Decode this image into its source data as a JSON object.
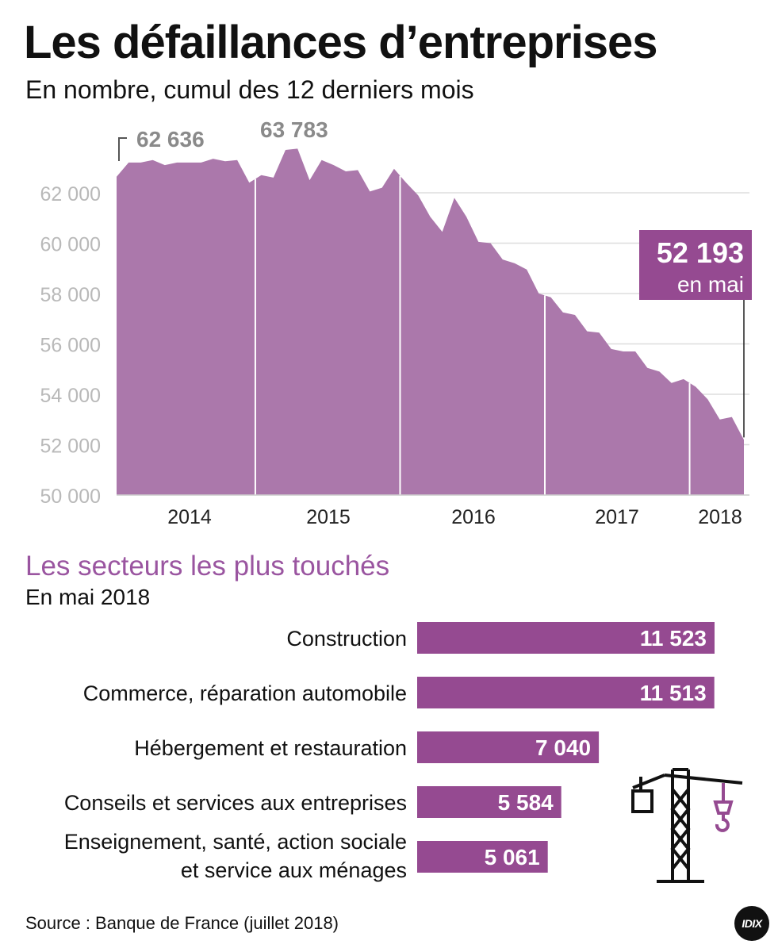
{
  "title": "Les défaillances d’entreprises",
  "subtitle": "En nombre, cumul des 12 derniers mois",
  "area_chart_data": {
    "type": "area",
    "y_ticks": [
      "62 000",
      "60 000",
      "58 000",
      "56 000",
      "54 000",
      "52 000",
      "50 000"
    ],
    "x_ticks": [
      "2014",
      "2015",
      "2016",
      "2017",
      "2018"
    ],
    "ylim": [
      50000,
      63783
    ],
    "peak_labels": [
      "62 636",
      "63 783"
    ],
    "callout_value": "52 193",
    "callout_text": "en mai",
    "values": [
      62636,
      63200,
      63200,
      63300,
      63100,
      63200,
      63200,
      63200,
      63350,
      63250,
      63300,
      62400,
      62700,
      62600,
      63700,
      63750,
      62500,
      63300,
      63100,
      62850,
      62900,
      62050,
      62200,
      62950,
      62400,
      61900,
      61050,
      60450,
      61800,
      61050,
      60050,
      60000,
      59350,
      59200,
      58950,
      58000,
      57850,
      57250,
      57150,
      56500,
      56450,
      55800,
      55700,
      55700,
      55050,
      54900,
      54450,
      54600,
      54300,
      53800,
      53000,
      53100,
      52193
    ]
  },
  "chart_data": {
    "type": "bar",
    "title": "Les secteurs les plus touchés",
    "subtitle": "En mai 2018",
    "categories": [
      "Construction",
      "Commerce, réparation automobile",
      "Hébergement et restauration",
      "Conseils et services aux entreprises",
      "Enseignement, santé, action sociale et service aux ménages"
    ],
    "category_lines": [
      [
        "Construction"
      ],
      [
        "Commerce, réparation automobile"
      ],
      [
        "Hébergement et restauration"
      ],
      [
        "Conseils et services aux entreprises"
      ],
      [
        "Enseignement, santé, action sociale",
        "et service aux ménages"
      ]
    ],
    "values": [
      11523,
      11513,
      7040,
      5584,
      5061
    ],
    "value_labels": [
      "11 523",
      "11 513",
      "7 040",
      "5 584",
      "5 061"
    ]
  },
  "colors": {
    "area_fill": "#ab78ab",
    "bar_fill": "#954a91",
    "bar_title": "#9a55a0",
    "axis_text": "#b9b9b9",
    "peak_text": "#8a8a8a",
    "grid": "#dddddd"
  },
  "icon": "crane-icon",
  "source": "Source : Banque de France (juillet 2018)",
  "logo": "IDIX"
}
